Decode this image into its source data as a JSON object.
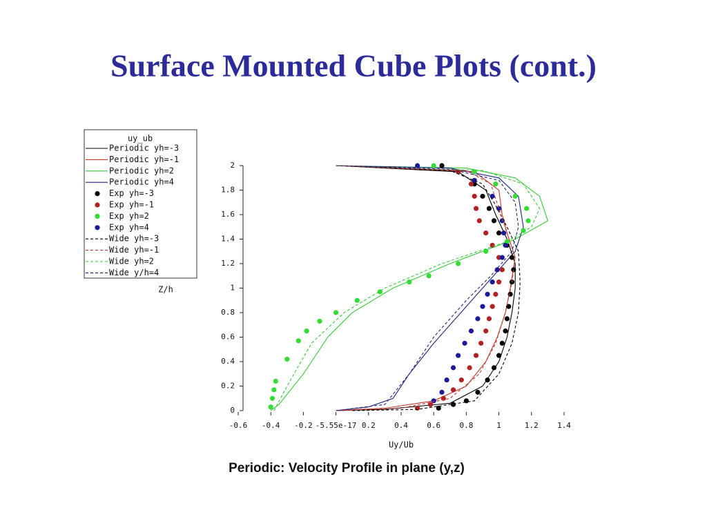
{
  "title": "Surface Mounted Cube Plots (cont.)",
  "chart_data": {
    "type": "line",
    "legend_title": "uy_ub",
    "ylabel": "Z/h",
    "xlabel": "Uy/Ub",
    "caption": "Periodic: Velocity Profile in plane (y,z)",
    "xlim": [
      -0.6,
      1.4
    ],
    "ylim": [
      0,
      2
    ],
    "xticks": [
      -0.6,
      -0.4,
      -0.2,
      -5.55e-17,
      0.2,
      0.4,
      0.6,
      0.8,
      1,
      1.2,
      1.4
    ],
    "yticks": [
      0,
      0.2,
      0.4,
      0.6,
      0.8,
      1,
      1.2,
      1.4,
      1.6,
      1.8,
      2
    ],
    "series": [
      {
        "name": "Periodic yh=-3",
        "color": "#000000",
        "style": "solid",
        "x": [
          0,
          0.3,
          0.7,
          0.9,
          1.0,
          1.05,
          1.08,
          1.1,
          1.1,
          1.05,
          0.98,
          0.92,
          0.75,
          0
        ],
        "y": [
          0,
          0.01,
          0.06,
          0.2,
          0.4,
          0.6,
          0.8,
          1.0,
          1.2,
          1.4,
          1.6,
          1.8,
          1.95,
          2
        ]
      },
      {
        "name": "Periodic yh=-1",
        "color": "#c0392b",
        "style": "solid",
        "x": [
          0,
          0.3,
          0.6,
          0.8,
          0.92,
          0.99,
          1.04,
          1.07,
          1.1,
          1.05,
          1.02,
          1.0,
          0.85,
          0
        ],
        "y": [
          0,
          0.02,
          0.08,
          0.2,
          0.4,
          0.6,
          0.8,
          1.0,
          1.25,
          1.45,
          1.6,
          1.8,
          1.95,
          2
        ]
      },
      {
        "name": "Periodic yh=2",
        "color": "#33cc33",
        "style": "solid",
        "x": [
          -0.4,
          -0.35,
          -0.2,
          -0.05,
          0.1,
          0.35,
          0.7,
          1.1,
          1.3,
          1.25,
          1.1,
          0.8,
          0
        ],
        "y": [
          0,
          0.05,
          0.3,
          0.6,
          0.8,
          1.0,
          1.2,
          1.4,
          1.55,
          1.75,
          1.9,
          1.98,
          2
        ]
      },
      {
        "name": "Periodic yh=4",
        "color": "#1a237e",
        "style": "solid",
        "x": [
          0,
          0.2,
          0.35,
          0.45,
          0.6,
          0.8,
          1.0,
          1.1,
          1.15,
          1.12,
          1.0,
          0.7,
          0
        ],
        "y": [
          0,
          0.03,
          0.1,
          0.3,
          0.55,
          0.85,
          1.15,
          1.3,
          1.5,
          1.75,
          1.9,
          1.98,
          2
        ]
      },
      {
        "name": "Exp yh=-3",
        "color": "#000000",
        "style": "marker",
        "x": [
          0.63,
          0.72,
          0.8,
          0.87,
          0.93,
          0.97,
          1.0,
          1.02,
          1.04,
          1.05,
          1.06,
          1.07,
          1.08,
          1.09,
          1.08,
          1.05,
          1.0,
          0.97,
          0.94,
          0.9,
          0.85,
          0.75,
          0.65
        ],
        "y": [
          0.02,
          0.05,
          0.08,
          0.15,
          0.25,
          0.35,
          0.45,
          0.55,
          0.65,
          0.75,
          0.85,
          0.95,
          1.05,
          1.15,
          1.25,
          1.35,
          1.45,
          1.55,
          1.65,
          1.75,
          1.85,
          1.95,
          2.0
        ]
      },
      {
        "name": "Exp yh=-1",
        "color": "#b22222",
        "style": "marker",
        "x": [
          0.5,
          0.58,
          0.66,
          0.72,
          0.77,
          0.82,
          0.86,
          0.89,
          0.92,
          0.94,
          0.96,
          0.98,
          1.0,
          1.02,
          1.0,
          0.96,
          0.92,
          0.88,
          0.86,
          0.85,
          0.83,
          0.75
        ],
        "y": [
          0.02,
          0.05,
          0.1,
          0.17,
          0.25,
          0.35,
          0.45,
          0.55,
          0.65,
          0.75,
          0.85,
          0.95,
          1.05,
          1.15,
          1.25,
          1.35,
          1.45,
          1.55,
          1.65,
          1.75,
          1.85,
          1.95
        ]
      },
      {
        "name": "Exp yh=2",
        "color": "#33dd33",
        "style": "marker",
        "x": [
          -0.4,
          -0.39,
          -0.38,
          -0.37,
          -0.3,
          -0.23,
          -0.18,
          -0.1,
          0.0,
          0.13,
          0.27,
          0.45,
          0.57,
          0.75,
          0.92,
          1.05,
          1.15,
          1.18,
          1.17,
          1.1,
          0.98,
          0.85,
          0.6
        ],
        "y": [
          0.03,
          0.1,
          0.17,
          0.24,
          0.42,
          0.57,
          0.65,
          0.73,
          0.8,
          0.9,
          0.97,
          1.05,
          1.1,
          1.2,
          1.3,
          1.38,
          1.47,
          1.55,
          1.65,
          1.75,
          1.85,
          1.95,
          2.0
        ]
      },
      {
        "name": "Exp yh=4",
        "color": "#1a1a9a",
        "style": "marker",
        "x": [
          0.6,
          0.65,
          0.68,
          0.72,
          0.75,
          0.79,
          0.83,
          0.87,
          0.9,
          0.93,
          0.96,
          0.99,
          1.02,
          1.04,
          1.03,
          1.02,
          1.0,
          0.96,
          0.85,
          0.5
        ],
        "y": [
          0.08,
          0.15,
          0.25,
          0.35,
          0.45,
          0.55,
          0.65,
          0.75,
          0.85,
          0.95,
          1.05,
          1.15,
          1.25,
          1.35,
          1.45,
          1.55,
          1.65,
          1.75,
          1.88,
          2.0
        ]
      },
      {
        "name": "Wide yh=-3",
        "color": "#000000",
        "style": "dashed",
        "x": [
          0.1,
          0.5,
          0.85,
          1.0,
          1.08,
          1.12,
          1.13,
          1.12,
          1.05,
          0.97,
          0.9,
          0.7,
          0
        ],
        "y": [
          0,
          0.01,
          0.08,
          0.3,
          0.55,
          0.8,
          1.05,
          1.3,
          1.5,
          1.7,
          1.85,
          1.96,
          2
        ]
      },
      {
        "name": "Wide yh=-1",
        "color": "#c0392b",
        "style": "dashed",
        "x": [
          0,
          0.4,
          0.7,
          0.88,
          0.98,
          1.04,
          1.08,
          1.1,
          1.05,
          1.0,
          0.95,
          0.8,
          0
        ],
        "y": [
          0,
          0.02,
          0.1,
          0.3,
          0.55,
          0.8,
          1.05,
          1.25,
          1.45,
          1.65,
          1.85,
          1.96,
          2
        ]
      },
      {
        "name": "Wide yh=2",
        "color": "#33cc33",
        "style": "dashed",
        "x": [
          -0.38,
          -0.3,
          -0.15,
          0.05,
          0.3,
          0.65,
          1.05,
          1.2,
          1.25,
          1.15,
          0.9,
          0
        ],
        "y": [
          0,
          0.2,
          0.55,
          0.8,
          1.0,
          1.2,
          1.38,
          1.5,
          1.65,
          1.85,
          1.96,
          2
        ]
      },
      {
        "name": "Wide y/h=4",
        "color": "#1a237e",
        "style": "dashed",
        "x": [
          0,
          0.3,
          0.45,
          0.6,
          0.8,
          0.95,
          1.08,
          1.12,
          1.1,
          1.0,
          0.7,
          0
        ],
        "y": [
          0,
          0.05,
          0.3,
          0.6,
          0.9,
          1.1,
          1.3,
          1.5,
          1.7,
          1.88,
          1.97,
          2
        ]
      }
    ]
  }
}
